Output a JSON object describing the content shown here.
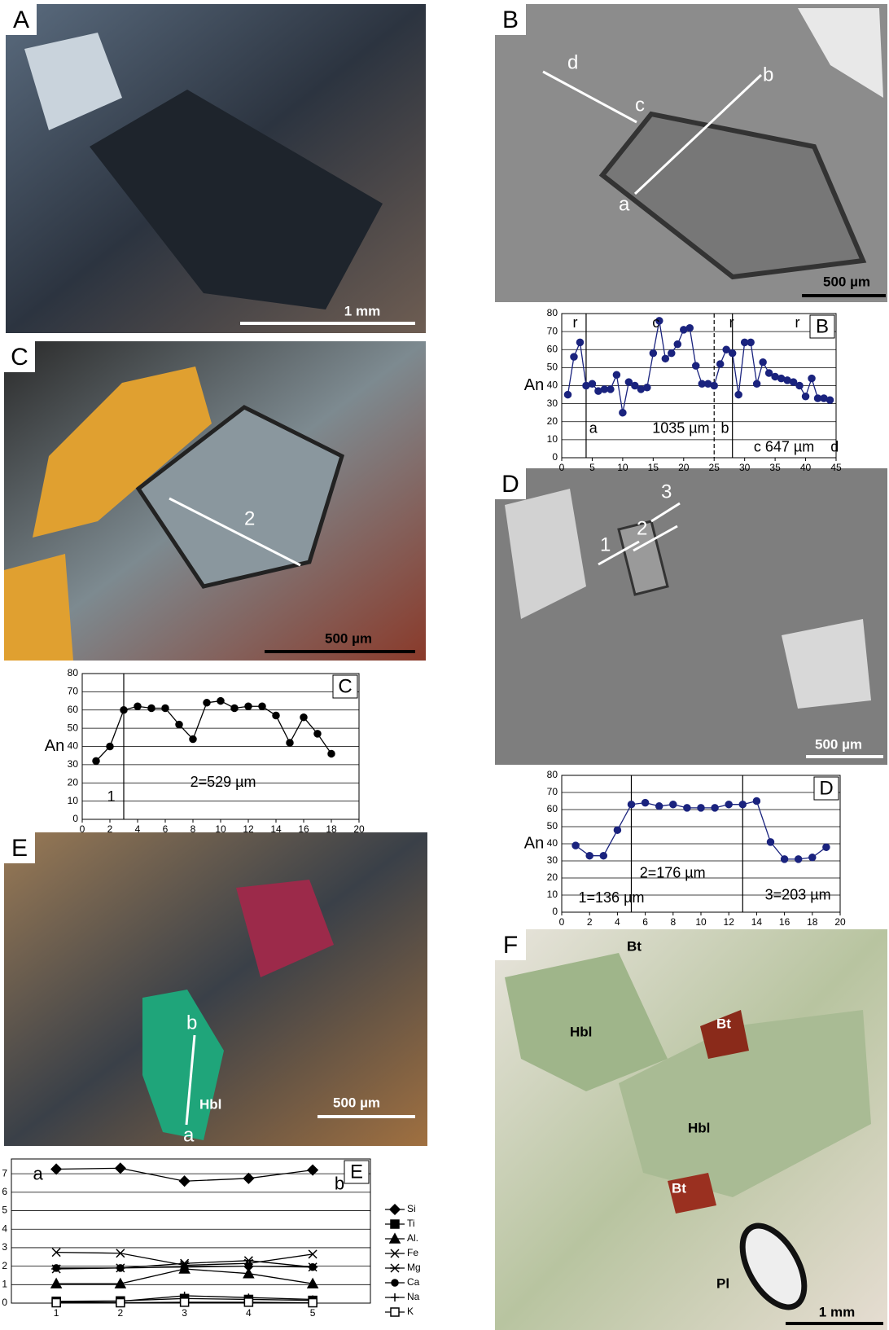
{
  "photos": {
    "A": {
      "label": "A",
      "scale": "1 mm"
    },
    "B": {
      "label": "B",
      "points": [
        "d",
        "c",
        "b",
        "a"
      ],
      "scale": "500 µm"
    },
    "C": {
      "label": "C",
      "profile": "2",
      "scale": "500 µm"
    },
    "D": {
      "label": "D",
      "profiles": [
        "1",
        "2",
        "3"
      ],
      "scale": "500 µm"
    },
    "E": {
      "label": "E",
      "points": [
        "b",
        "a"
      ],
      "mineral": "Hbl",
      "scale": "500 µm"
    },
    "F": {
      "label": "F",
      "minerals": [
        "Bt",
        "Hbl",
        "Bt",
        "Hbl",
        "Bt",
        "Pl"
      ],
      "scale": "1 mm"
    }
  },
  "chart_data": [
    {
      "type": "line",
      "panel": "B",
      "ylabel": "An",
      "color": "#1a237e",
      "x": [
        1,
        2,
        3,
        4,
        5,
        6,
        7,
        8,
        9,
        10,
        11,
        12,
        13,
        14,
        15,
        16,
        17,
        18,
        19,
        20,
        21,
        22,
        23,
        24,
        25,
        26,
        27,
        28,
        29,
        30,
        31,
        32,
        33,
        34,
        35,
        36,
        37,
        38,
        39,
        40,
        41,
        42,
        43,
        44
      ],
      "values": [
        35,
        56,
        64,
        40,
        41,
        37,
        38,
        38,
        46,
        25,
        42,
        40,
        38,
        39,
        58,
        76,
        55,
        58,
        63,
        71,
        72,
        51,
        41,
        41,
        40,
        52,
        60,
        58,
        35,
        64,
        64,
        41,
        53,
        47,
        45,
        44,
        43,
        42,
        40,
        34,
        44,
        33,
        33,
        32
      ],
      "xlim": [
        0,
        45
      ],
      "xticks": [
        0,
        5,
        10,
        15,
        20,
        25,
        30,
        35,
        40,
        45
      ],
      "ylim": [
        0,
        80
      ],
      "yticks": [
        0,
        10,
        20,
        30,
        40,
        50,
        60,
        70,
        80
      ],
      "vlines": [
        {
          "x": 4
        },
        {
          "x": 25,
          "dashed": true
        },
        {
          "x": 28
        }
      ],
      "annotations": [
        "r",
        "c",
        "r",
        "r",
        "a",
        "1035 µm",
        "b",
        "c 647 µm",
        "d"
      ]
    },
    {
      "type": "line",
      "panel": "C",
      "ylabel": "An",
      "color": "#000000",
      "x": [
        1,
        2,
        3,
        4,
        5,
        6,
        7,
        8,
        9,
        10,
        11,
        12,
        13,
        14,
        15,
        16,
        17,
        18
      ],
      "values": [
        32,
        40,
        60,
        62,
        61,
        61,
        52,
        44,
        64,
        65,
        61,
        62,
        62,
        57,
        42,
        56,
        47,
        36
      ],
      "xlim": [
        0,
        20
      ],
      "xticks": [
        0,
        2,
        4,
        6,
        8,
        10,
        12,
        14,
        16,
        18,
        20
      ],
      "ylim": [
        0,
        80
      ],
      "yticks": [
        0,
        10,
        20,
        30,
        40,
        50,
        60,
        70,
        80
      ],
      "vlines": [
        {
          "x": 3
        }
      ],
      "annotations": [
        "1",
        "2=529 µm"
      ]
    },
    {
      "type": "line",
      "panel": "D",
      "ylabel": "An",
      "color": "#1a237e",
      "x": [
        1,
        2,
        3,
        4,
        5,
        6,
        7,
        8,
        9,
        10,
        11,
        12,
        13,
        14,
        15,
        16,
        17,
        18,
        19
      ],
      "values": [
        39,
        33,
        33,
        48,
        63,
        64,
        62,
        63,
        61,
        61,
        61,
        63,
        63,
        65,
        41,
        31,
        31,
        32,
        38
      ],
      "xlim": [
        0,
        20
      ],
      "xticks": [
        0,
        2,
        4,
        6,
        8,
        10,
        12,
        14,
        16,
        18,
        20
      ],
      "ylim": [
        0,
        80
      ],
      "yticks": [
        0,
        10,
        20,
        30,
        40,
        50,
        60,
        70,
        80
      ],
      "vlines": [
        {
          "x": 5
        },
        {
          "x": 13
        }
      ],
      "annotations": [
        "1=136 µm",
        "2=176 µm",
        "3=203 µm"
      ]
    },
    {
      "type": "line",
      "panel": "E",
      "x": [
        1,
        2,
        3,
        4,
        5
      ],
      "xlim": [
        0.3,
        5.9
      ],
      "xticks": [
        1,
        2,
        3,
        4,
        5
      ],
      "ylim": [
        0,
        7.8
      ],
      "yticks": [
        0,
        1,
        2,
        3,
        4,
        5,
        6,
        7
      ],
      "series": [
        {
          "name": "Si",
          "color": "#000000",
          "marker": "diamond",
          "values": [
            7.25,
            7.3,
            6.6,
            6.75,
            7.2
          ]
        },
        {
          "name": "Ti",
          "color": "#000000",
          "marker": "square",
          "values": [
            0.1,
            0.12,
            0.25,
            0.2,
            0.15
          ]
        },
        {
          "name": "Al.",
          "color": "#000000",
          "marker": "triangle",
          "values": [
            1.05,
            1.05,
            1.85,
            1.6,
            1.05
          ]
        },
        {
          "name": "Fe",
          "color": "#000000",
          "marker": "x",
          "values": [
            2.75,
            2.7,
            2.05,
            2.15,
            2.65
          ]
        },
        {
          "name": "Mg",
          "color": "#000000",
          "marker": "star",
          "values": [
            1.85,
            1.9,
            2.15,
            2.3,
            1.95
          ]
        },
        {
          "name": "Ca",
          "color": "#000000",
          "marker": "circle",
          "values": [
            1.9,
            1.9,
            1.95,
            2.0,
            1.95
          ]
        },
        {
          "name": "Na",
          "color": "#000000",
          "marker": "plus",
          "values": [
            0.05,
            0.1,
            0.4,
            0.3,
            0.2
          ]
        },
        {
          "name": "K",
          "color": "#000000",
          "marker": "open-square",
          "values": [
            0.02,
            0.02,
            0.05,
            0.05,
            0.02
          ]
        }
      ],
      "annotations": [
        "a",
        "b"
      ]
    }
  ]
}
